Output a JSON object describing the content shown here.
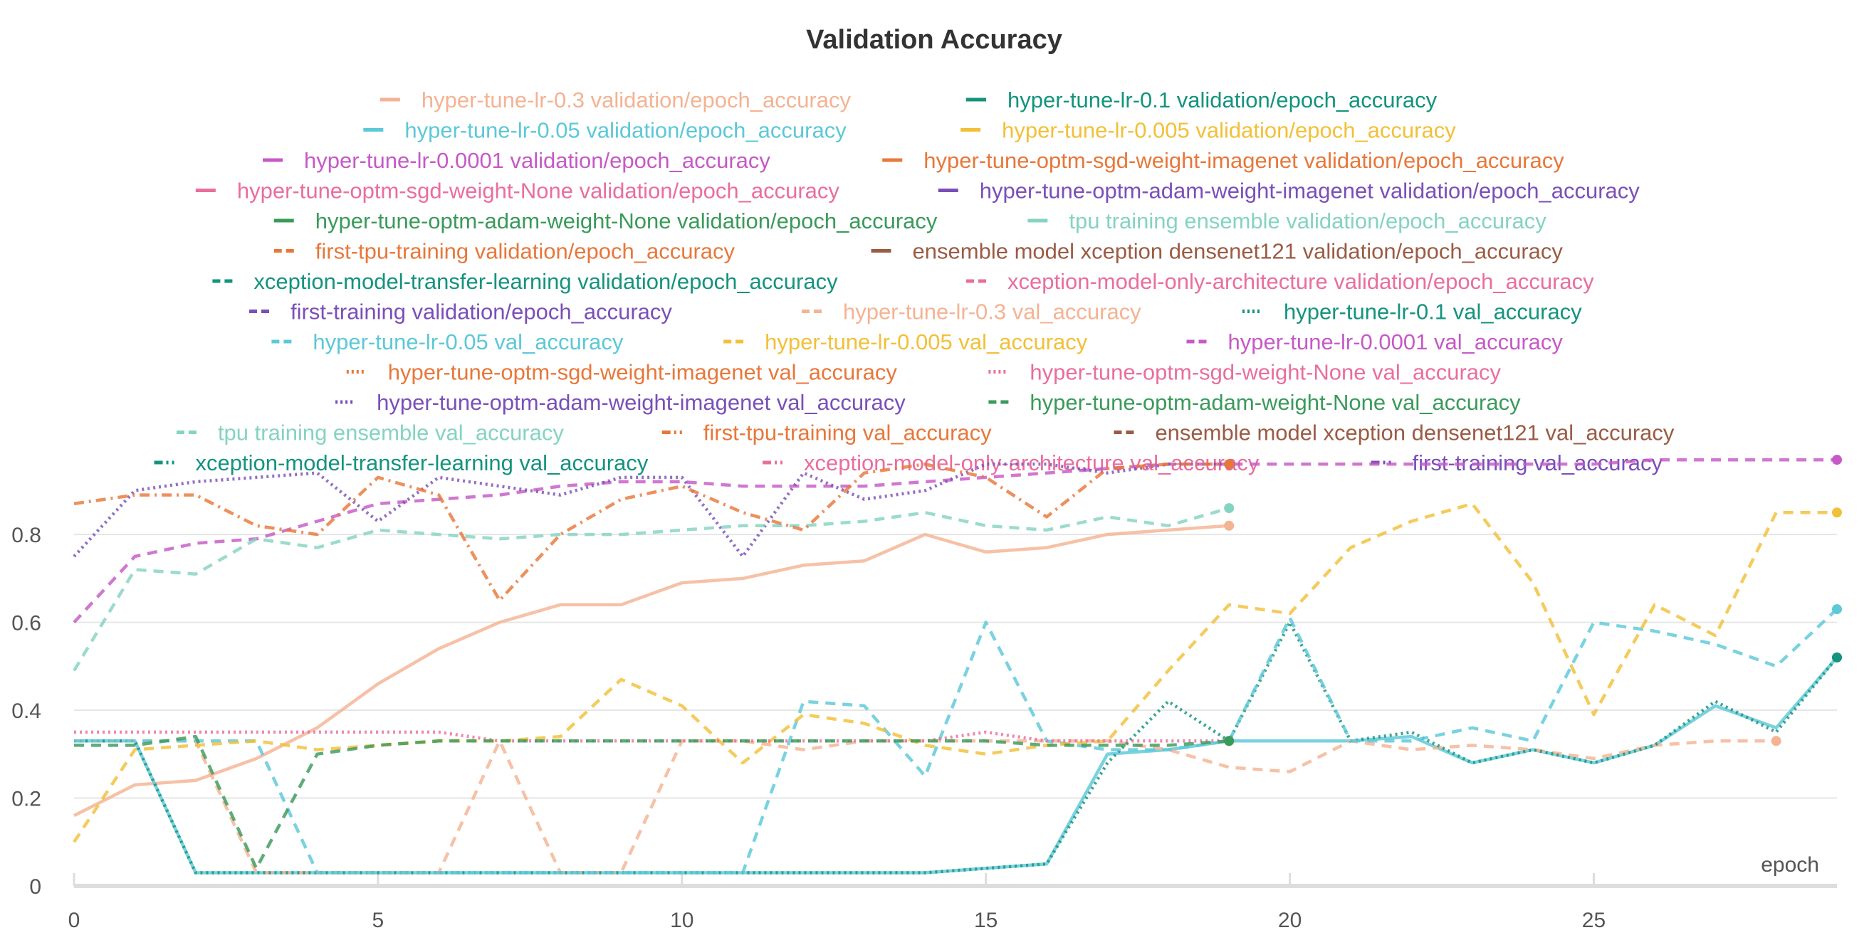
{
  "chart_data": {
    "type": "line",
    "title": "Validation Accuracy",
    "xlabel": "epoch",
    "ylabel": "",
    "xlim": [
      0,
      29
    ],
    "ylim": [
      0,
      0.98
    ],
    "x_ticks": [
      0,
      5,
      10,
      15,
      20,
      25
    ],
    "y_ticks": [
      0,
      0.2,
      0.4,
      0.6,
      0.8
    ],
    "y_tick_labels": [
      "0",
      "0.2",
      "0.4",
      "0.6",
      "0.8"
    ],
    "grid": true,
    "legend_position": "top",
    "series": [
      {
        "name": "hyper-tune-lr-0.3 validation/epoch_accuracy",
        "color": "#f4b393",
        "dash": "solid",
        "x": [
          0,
          1,
          2,
          3,
          4,
          5,
          6,
          7,
          8,
          9,
          10,
          11,
          12,
          13,
          14,
          15,
          16,
          17,
          18,
          19
        ],
        "y": [
          0.16,
          0.23,
          0.24,
          0.29,
          0.36,
          0.46,
          0.54,
          0.6,
          0.64,
          0.64,
          0.69,
          0.7,
          0.73,
          0.74,
          0.8,
          0.76,
          0.77,
          0.8,
          0.81,
          0.82
        ]
      },
      {
        "name": "hyper-tune-lr-0.1 validation/epoch_accuracy",
        "color": "#14937e",
        "dash": "solid",
        "x": [],
        "y": []
      },
      {
        "name": "hyper-tune-lr-0.05 validation/epoch_accuracy",
        "color": "#5cc8d8",
        "dash": "solid",
        "x": [
          0,
          1,
          2,
          3,
          4,
          5,
          6,
          7,
          8,
          9,
          10,
          11,
          12,
          13,
          14,
          15,
          16,
          17,
          18,
          19,
          20,
          21,
          22,
          23,
          24,
          25,
          26,
          27,
          28,
          29
        ],
        "y": [
          0.33,
          0.33,
          0.03,
          0.03,
          0.03,
          0.03,
          0.03,
          0.03,
          0.03,
          0.03,
          0.03,
          0.03,
          0.03,
          0.03,
          0.03,
          0.04,
          0.05,
          0.3,
          0.31,
          0.33,
          0.33,
          0.33,
          0.34,
          0.28,
          0.31,
          0.28,
          0.32,
          0.41,
          0.36,
          0.52
        ]
      },
      {
        "name": "hyper-tune-lr-0.005 validation/epoch_accuracy",
        "color": "#f2c038",
        "dash": "solid",
        "x": [],
        "y": []
      },
      {
        "name": "hyper-tune-lr-0.0001 validation/epoch_accuracy",
        "color": "#c659c7",
        "dash": "solid",
        "x": [],
        "y": []
      },
      {
        "name": "hyper-tune-optm-sgd-weight-imagenet validation/epoch_accuracy",
        "color": "#e8773a",
        "dash": "solid",
        "x": [],
        "y": []
      },
      {
        "name": "hyper-tune-optm-sgd-weight-None validation/epoch_accuracy",
        "color": "#e96e9e",
        "dash": "solid",
        "x": [],
        "y": []
      },
      {
        "name": "hyper-tune-optm-adam-weight-imagenet validation/epoch_accuracy",
        "color": "#7a4fb8",
        "dash": "solid",
        "x": [],
        "y": []
      },
      {
        "name": "hyper-tune-optm-adam-weight-None validation/epoch_accuracy",
        "color": "#3a9a5a",
        "dash": "solid",
        "x": [],
        "y": []
      },
      {
        "name": "tpu training ensemble validation/epoch_accuracy",
        "color": "#85d3c2",
        "dash": "solid",
        "x": [],
        "y": []
      },
      {
        "name": "first-tpu-training validation/epoch_accuracy",
        "color": "#e8773a",
        "dash": "dashed",
        "x": [],
        "y": []
      },
      {
        "name": "ensemble model xception densenet121 validation/epoch_accuracy",
        "color": "#9b5b44",
        "dash": "solid",
        "x": [],
        "y": []
      },
      {
        "name": "xception-model-transfer-learning validation/epoch_accuracy",
        "color": "#14937e",
        "dash": "dashed",
        "x": [],
        "y": []
      },
      {
        "name": "xception-model-only-architecture validation/epoch_accuracy",
        "color": "#e96e9e",
        "dash": "dashed",
        "x": [],
        "y": []
      },
      {
        "name": "first-training validation/epoch_accuracy",
        "color": "#7a4fb8",
        "dash": "dashed",
        "x": [],
        "y": []
      },
      {
        "name": "hyper-tune-lr-0.3 val_accuracy",
        "color": "#f4b393",
        "dash": "dashed",
        "x": [
          0,
          1,
          2,
          3,
          4,
          5,
          6,
          7,
          8,
          9,
          10,
          11,
          12,
          13,
          14,
          15,
          16,
          17,
          18,
          19,
          20,
          21,
          22,
          23,
          24,
          25,
          26,
          27,
          28
        ],
        "y": [
          0.33,
          0.33,
          0.33,
          0.03,
          0.03,
          0.03,
          0.03,
          0.33,
          0.03,
          0.03,
          0.33,
          0.33,
          0.31,
          0.33,
          0.33,
          0.33,
          0.33,
          0.33,
          0.31,
          0.27,
          0.26,
          0.33,
          0.31,
          0.32,
          0.31,
          0.29,
          0.32,
          0.33,
          0.33
        ]
      },
      {
        "name": "hyper-tune-lr-0.1 val_accuracy",
        "color": "#14937e",
        "dash": "dotted",
        "x": [
          0,
          1,
          2,
          3,
          4,
          5,
          6,
          7,
          8,
          9,
          10,
          11,
          12,
          13,
          14,
          15,
          16,
          17,
          18,
          19,
          20,
          21,
          22,
          23,
          24,
          25,
          26,
          27,
          28,
          29
        ],
        "y": [
          0.33,
          0.33,
          0.03,
          0.03,
          0.03,
          0.03,
          0.03,
          0.03,
          0.03,
          0.03,
          0.03,
          0.03,
          0.03,
          0.03,
          0.03,
          0.04,
          0.05,
          0.28,
          0.42,
          0.33,
          0.6,
          0.33,
          0.35,
          0.28,
          0.31,
          0.28,
          0.32,
          0.42,
          0.35,
          0.52
        ]
      },
      {
        "name": "hyper-tune-lr-0.05 val_accuracy",
        "color": "#5cc8d8",
        "dash": "dashed",
        "x": [
          0,
          1,
          2,
          3,
          4,
          5,
          6,
          7,
          8,
          9,
          10,
          11,
          12,
          13,
          14,
          15,
          16,
          17,
          18,
          19,
          20,
          21,
          22,
          23,
          24,
          25,
          26,
          27,
          28,
          29
        ],
        "y": [
          0.33,
          0.33,
          0.33,
          0.33,
          0.03,
          0.03,
          0.03,
          0.03,
          0.03,
          0.03,
          0.03,
          0.03,
          0.42,
          0.41,
          0.25,
          0.6,
          0.33,
          0.31,
          0.31,
          0.33,
          0.61,
          0.33,
          0.33,
          0.36,
          0.33,
          0.6,
          0.58,
          0.55,
          0.5,
          0.63
        ]
      },
      {
        "name": "hyper-tune-lr-0.005 val_accuracy",
        "color": "#f2c038",
        "dash": "dashed",
        "x": [
          0,
          1,
          2,
          3,
          4,
          5,
          6,
          7,
          8,
          9,
          10,
          11,
          12,
          13,
          14,
          15,
          16,
          17,
          18,
          19,
          20,
          21,
          22,
          23,
          24,
          25,
          26,
          27,
          28,
          29
        ],
        "y": [
          0.1,
          0.31,
          0.32,
          0.33,
          0.31,
          0.32,
          0.33,
          0.33,
          0.34,
          0.47,
          0.41,
          0.28,
          0.39,
          0.37,
          0.32,
          0.3,
          0.32,
          0.33,
          0.49,
          0.64,
          0.62,
          0.77,
          0.83,
          0.87,
          0.69,
          0.39,
          0.64,
          0.57,
          0.85,
          0.85
        ]
      },
      {
        "name": "hyper-tune-lr-0.0001 val_accuracy",
        "color": "#c659c7",
        "dash": "dashed",
        "x": [
          0,
          1,
          2,
          3,
          4,
          5,
          6,
          7,
          8,
          9,
          10,
          11,
          12,
          13,
          14,
          15,
          16,
          17,
          18,
          19,
          20,
          21,
          22,
          23,
          24,
          25,
          26,
          27,
          28,
          29
        ],
        "y": [
          0.6,
          0.75,
          0.78,
          0.79,
          0.83,
          0.87,
          0.88,
          0.89,
          0.91,
          0.92,
          0.92,
          0.91,
          0.91,
          0.91,
          0.92,
          0.93,
          0.94,
          0.95,
          0.96,
          0.96,
          0.96,
          0.96,
          0.96,
          0.96,
          0.96,
          0.96,
          0.97,
          0.97,
          0.97,
          0.97
        ]
      },
      {
        "name": "hyper-tune-optm-sgd-weight-imagenet val_accuracy",
        "color": "#e8773a",
        "dash": "dotted",
        "x": [],
        "y": []
      },
      {
        "name": "hyper-tune-optm-sgd-weight-None val_accuracy",
        "color": "#e96e9e",
        "dash": "dotted",
        "x": [
          0,
          1,
          2,
          3,
          4,
          5,
          6,
          7,
          8,
          9,
          10,
          11,
          12,
          13,
          14,
          15,
          16,
          17,
          18,
          19
        ],
        "y": [
          0.35,
          0.35,
          0.35,
          0.35,
          0.35,
          0.35,
          0.35,
          0.33,
          0.33,
          0.33,
          0.33,
          0.33,
          0.33,
          0.33,
          0.33,
          0.35,
          0.33,
          0.33,
          0.33,
          0.33
        ]
      },
      {
        "name": "hyper-tune-optm-adam-weight-imagenet val_accuracy",
        "color": "#7a4fb8",
        "dash": "dotted",
        "x": [
          0,
          1,
          2,
          3,
          4,
          5,
          6,
          7,
          8,
          9,
          10,
          11,
          12,
          13,
          14,
          15,
          16,
          17,
          18,
          19
        ],
        "y": [
          0.75,
          0.9,
          0.92,
          0.93,
          0.94,
          0.83,
          0.93,
          0.91,
          0.89,
          0.93,
          0.93,
          0.75,
          0.94,
          0.88,
          0.9,
          0.96,
          0.96,
          0.94,
          0.96,
          0.96
        ]
      },
      {
        "name": "hyper-tune-optm-adam-weight-None val_accuracy",
        "color": "#3a9a5a",
        "dash": "dashed",
        "x": [
          0,
          1,
          2,
          3,
          4,
          5,
          6,
          7,
          8,
          9,
          10,
          11,
          12,
          13,
          14,
          15,
          16,
          17,
          18,
          19
        ],
        "y": [
          0.32,
          0.32,
          0.34,
          0.04,
          0.3,
          0.32,
          0.33,
          0.33,
          0.33,
          0.33,
          0.33,
          0.33,
          0.33,
          0.33,
          0.33,
          0.33,
          0.32,
          0.32,
          0.32,
          0.33
        ]
      },
      {
        "name": "tpu training ensemble val_accuracy",
        "color": "#85d3c2",
        "dash": "dashed",
        "x": [
          0,
          1,
          2,
          3,
          4,
          5,
          6,
          7,
          8,
          9,
          10,
          11,
          12,
          13,
          14,
          15,
          16,
          17,
          18,
          19
        ],
        "y": [
          0.49,
          0.72,
          0.71,
          0.79,
          0.77,
          0.81,
          0.8,
          0.79,
          0.8,
          0.8,
          0.81,
          0.82,
          0.82,
          0.83,
          0.85,
          0.82,
          0.81,
          0.84,
          0.82,
          0.86
        ]
      },
      {
        "name": "first-tpu-training val_accuracy",
        "color": "#e8773a",
        "dash": "dashdot",
        "x": [
          0,
          1,
          2,
          3,
          4,
          5,
          6,
          7,
          8,
          9,
          10,
          11,
          12,
          13,
          14,
          15,
          16,
          17,
          18,
          19
        ],
        "y": [
          0.87,
          0.89,
          0.89,
          0.82,
          0.8,
          0.93,
          0.89,
          0.65,
          0.8,
          0.88,
          0.91,
          0.85,
          0.81,
          0.94,
          0.96,
          0.93,
          0.84,
          0.95,
          0.96,
          0.96
        ]
      },
      {
        "name": "ensemble model xception densenet121 val_accuracy",
        "color": "#9b5b44",
        "dash": "dashed",
        "x": [],
        "y": []
      },
      {
        "name": "xception-model-transfer-learning val_accuracy",
        "color": "#14937e",
        "dash": "dashdot",
        "x": [],
        "y": []
      },
      {
        "name": "xception-model-only-architecture val_accuracy",
        "color": "#e96e9e",
        "dash": "dashdot",
        "x": [],
        "y": []
      },
      {
        "name": "first-training val_accuracy",
        "color": "#7a4fb8",
        "dash": "dashdot",
        "x": [],
        "y": []
      }
    ]
  }
}
